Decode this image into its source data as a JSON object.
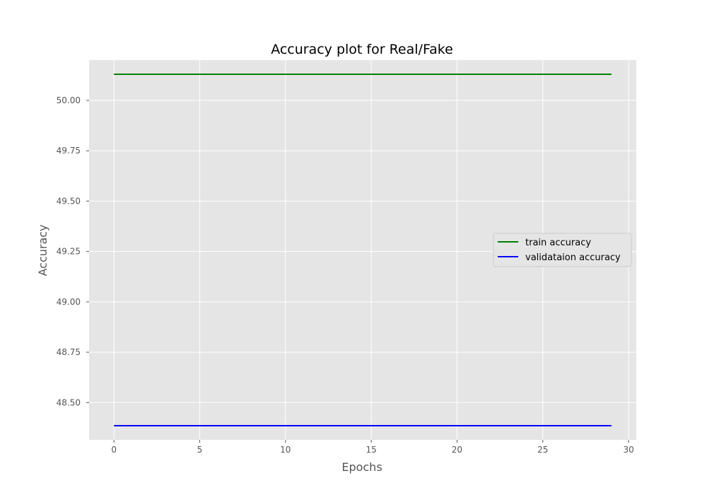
{
  "chart_data": {
    "type": "line",
    "title": "Accuracy plot for Real/Fake",
    "xlabel": "Epochs",
    "ylabel": "Accuracy",
    "xlim": [
      -1.45,
      30.45
    ],
    "ylim": [
      48.315,
      50.2
    ],
    "xticks": [
      0,
      5,
      10,
      15,
      20,
      25,
      30
    ],
    "yticks": [
      48.5,
      48.75,
      49.0,
      49.25,
      49.5,
      49.75,
      50.0
    ],
    "ytick_labels": [
      "48.50",
      "48.75",
      "49.00",
      "49.25",
      "49.50",
      "49.75",
      "50.00"
    ],
    "grid": true,
    "legend_position": "center-right",
    "x": [
      0,
      1,
      2,
      3,
      4,
      5,
      6,
      7,
      8,
      9,
      10,
      11,
      12,
      13,
      14,
      15,
      16,
      17,
      18,
      19,
      20,
      21,
      22,
      23,
      24,
      25,
      26,
      27,
      28,
      29
    ],
    "series": [
      {
        "name": "train accuracy",
        "color": "#008000",
        "values": [
          50.13,
          50.13,
          50.13,
          50.13,
          50.13,
          50.13,
          50.13,
          50.13,
          50.13,
          50.13,
          50.13,
          50.13,
          50.13,
          50.13,
          50.13,
          50.13,
          50.13,
          50.13,
          50.13,
          50.13,
          50.13,
          50.13,
          50.13,
          50.13,
          50.13,
          50.13,
          50.13,
          50.13,
          50.13,
          50.13
        ]
      },
      {
        "name": "validataion accuracy",
        "color": "#0000ff",
        "values": [
          48.385,
          48.385,
          48.385,
          48.385,
          48.385,
          48.385,
          48.385,
          48.385,
          48.385,
          48.385,
          48.385,
          48.385,
          48.385,
          48.385,
          48.385,
          48.385,
          48.385,
          48.385,
          48.385,
          48.385,
          48.385,
          48.385,
          48.385,
          48.385,
          48.385,
          48.385,
          48.385,
          48.385,
          48.385,
          48.385
        ]
      }
    ]
  }
}
